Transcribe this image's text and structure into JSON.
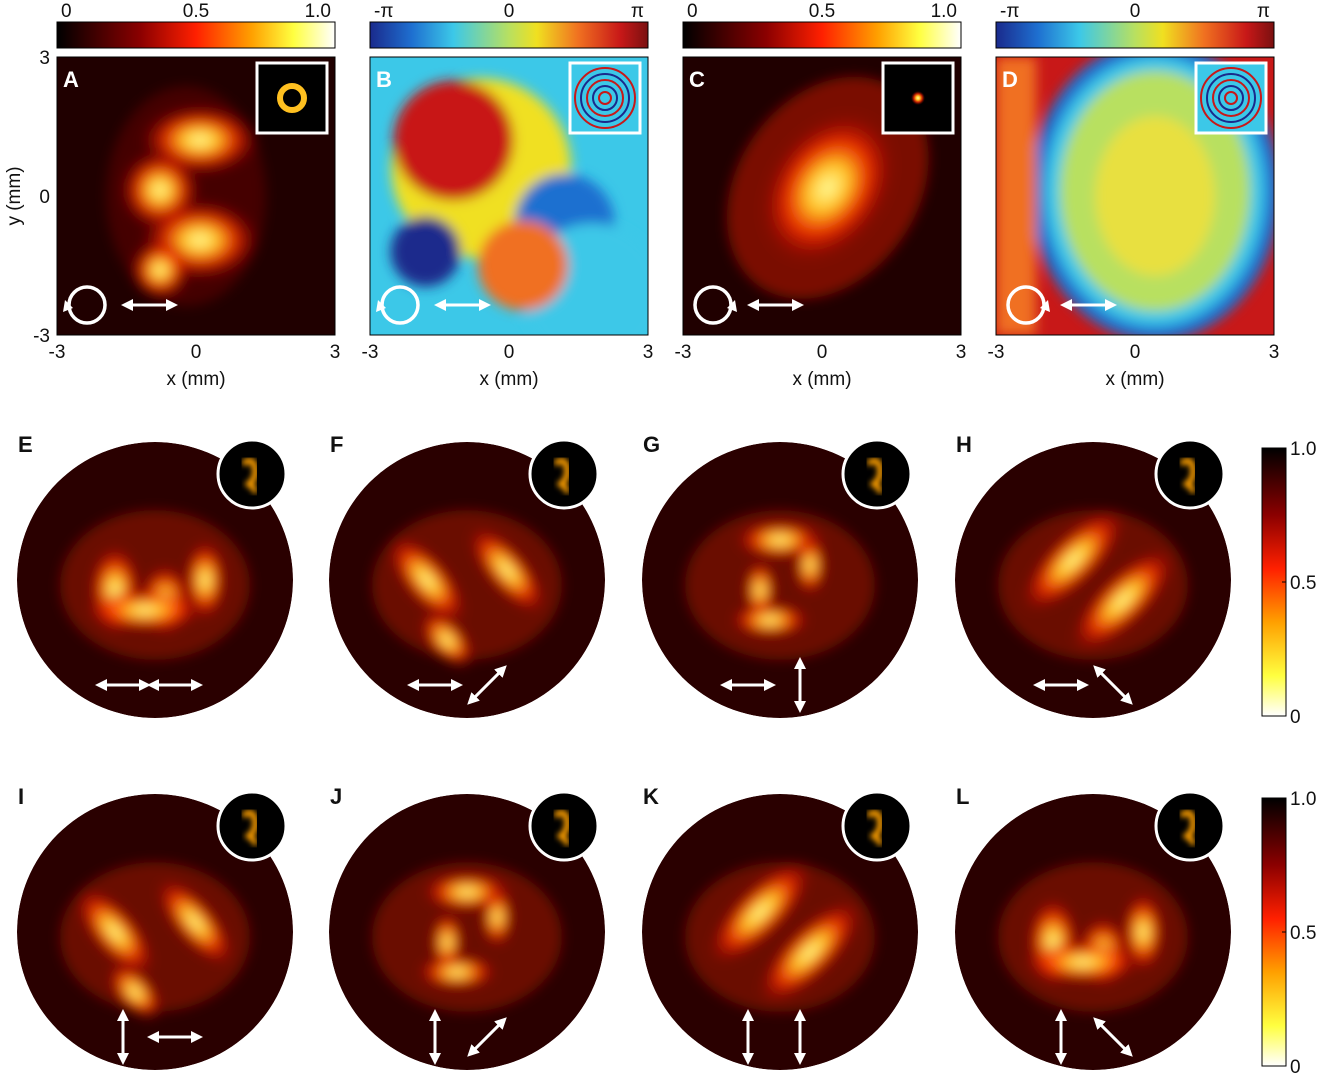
{
  "chart_data": {
    "type": "heatmap",
    "top_row": {
      "axis": {
        "xlabel": "x (mm)",
        "ylabel": "y (mm)",
        "xticks": [
          "-3",
          "0",
          "3"
        ],
        "yticks": [
          "3",
          "0",
          "-3"
        ],
        "xlim": [
          -3,
          3
        ],
        "ylim": [
          -3,
          3
        ]
      },
      "panels": [
        {
          "label": "A",
          "kind": "intensity",
          "colorbar_ticks": [
            "0",
            "0.5",
            "1.0"
          ],
          "colormap": "hot",
          "inset": "ring",
          "handedness_icon": "circular-arrow-left",
          "polarization_icon": "horizontal-arrow"
        },
        {
          "label": "B",
          "kind": "phase",
          "colorbar_ticks": [
            "-π",
            "0",
            "π"
          ],
          "colormap": "jet",
          "inset": "spiral-phase",
          "handedness_icon": "circular-arrow-left",
          "polarization_icon": "horizontal-arrow"
        },
        {
          "label": "C",
          "kind": "intensity",
          "colorbar_ticks": [
            "0",
            "0.5",
            "1.0"
          ],
          "colormap": "hot",
          "inset": "spot",
          "handedness_icon": "circular-arrow-right",
          "polarization_icon": "horizontal-arrow"
        },
        {
          "label": "D",
          "kind": "phase",
          "colorbar_ticks": [
            "-π",
            "0",
            "π"
          ],
          "colormap": "jet",
          "inset": "ring-phase",
          "handedness_icon": "circular-arrow-right",
          "polarization_icon": "horizontal-arrow"
        }
      ]
    },
    "middle_row": {
      "colorbar_ticks": [
        "1.0",
        "0.5",
        "0"
      ],
      "panels": [
        {
          "label": "E",
          "polarization": [
            "horizontal",
            "horizontal"
          ]
        },
        {
          "label": "F",
          "polarization": [
            "horizontal",
            "diagonal"
          ]
        },
        {
          "label": "G",
          "polarization": [
            "horizontal",
            "vertical"
          ]
        },
        {
          "label": "H",
          "polarization": [
            "horizontal",
            "antidiagonal"
          ]
        }
      ]
    },
    "bottom_row": {
      "colorbar_ticks": [
        "1.0",
        "0.5",
        "0"
      ],
      "panels": [
        {
          "label": "I",
          "polarization": [
            "vertical",
            "horizontal"
          ]
        },
        {
          "label": "J",
          "polarization": [
            "vertical",
            "diagonal"
          ]
        },
        {
          "label": "K",
          "polarization": [
            "vertical",
            "vertical"
          ]
        },
        {
          "label": "L",
          "polarization": [
            "vertical",
            "antidiagonal"
          ]
        }
      ]
    },
    "colors": {
      "hot": [
        "#000000",
        "#8b0000",
        "#ff2000",
        "#ffa000",
        "#ffff40",
        "#ffffff"
      ],
      "jet": [
        "#1a2a8c",
        "#1e6fd0",
        "#3cc8e8",
        "#b8e060",
        "#f0e020",
        "#f07020",
        "#c81818",
        "#7a1010"
      ]
    }
  }
}
